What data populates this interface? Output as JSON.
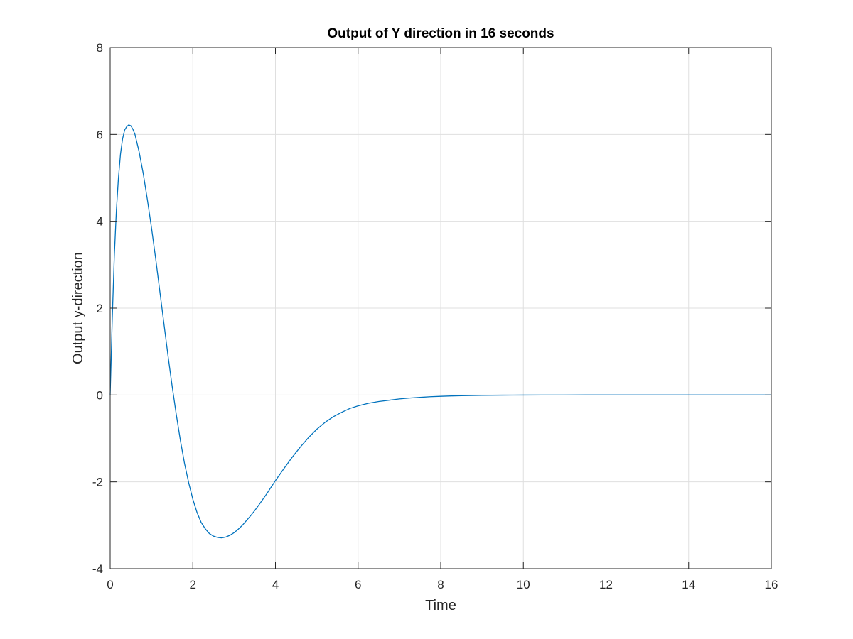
{
  "chart_data": {
    "type": "line",
    "title": "Output of Y direction in 16 seconds",
    "xlabel": "Time",
    "ylabel": "Output y-direction",
    "xlim": [
      0,
      16
    ],
    "ylim": [
      -4,
      8
    ],
    "xticks": [
      0,
      2,
      4,
      6,
      8,
      10,
      12,
      14,
      16
    ],
    "yticks": [
      -4,
      -2,
      0,
      2,
      4,
      6,
      8
    ],
    "grid": true,
    "box": true,
    "line_color": "#0072BD",
    "grid_color": "#DFDFDF",
    "axis_color": "#262626",
    "series": [
      {
        "x": [
          0,
          0.05,
          0.1,
          0.15,
          0.2,
          0.25,
          0.3,
          0.35,
          0.4,
          0.45,
          0.5,
          0.55,
          0.6,
          0.7,
          0.8,
          0.9,
          1.0,
          1.1,
          1.2,
          1.3,
          1.4,
          1.5,
          1.6,
          1.7,
          1.8,
          1.9,
          2.0,
          2.1,
          2.2,
          2.3,
          2.4,
          2.5,
          2.6,
          2.7,
          2.8,
          2.9,
          3.0,
          3.1,
          3.2,
          3.3,
          3.4,
          3.5,
          3.6,
          3.8,
          4.0,
          4.2,
          4.4,
          4.6,
          4.8,
          5.0,
          5.2,
          5.4,
          5.6,
          5.8,
          6.0,
          6.25,
          6.5,
          6.75,
          7.0,
          7.25,
          7.5,
          7.75,
          8.0,
          8.25,
          8.5,
          8.75,
          9.0,
          9.25,
          9.5,
          9.75,
          10.0,
          10.5,
          11.0,
          11.5,
          12.0,
          12.5,
          13.0,
          13.5,
          14.0,
          14.5,
          15.0,
          15.5,
          16.0
        ],
        "y": [
          0,
          1.75,
          3.2,
          4.25,
          5.0,
          5.55,
          5.9,
          6.1,
          6.18,
          6.22,
          6.2,
          6.12,
          6.0,
          5.6,
          5.1,
          4.5,
          3.85,
          3.15,
          2.4,
          1.65,
          0.9,
          0.2,
          -0.45,
          -1.05,
          -1.58,
          -2.02,
          -2.4,
          -2.7,
          -2.93,
          -3.08,
          -3.19,
          -3.25,
          -3.28,
          -3.29,
          -3.27,
          -3.23,
          -3.17,
          -3.09,
          -3.0,
          -2.89,
          -2.78,
          -2.66,
          -2.53,
          -2.26,
          -1.97,
          -1.7,
          -1.44,
          -1.2,
          -0.98,
          -0.79,
          -0.63,
          -0.5,
          -0.4,
          -0.31,
          -0.25,
          -0.19,
          -0.15,
          -0.12,
          -0.09,
          -0.07,
          -0.055,
          -0.04,
          -0.03,
          -0.022,
          -0.016,
          -0.012,
          -0.008,
          -0.006,
          -0.004,
          -0.003,
          -0.002,
          -0.001,
          -0.0005,
          0,
          0,
          0,
          0,
          0,
          0,
          0,
          0,
          0,
          0
        ]
      }
    ]
  }
}
